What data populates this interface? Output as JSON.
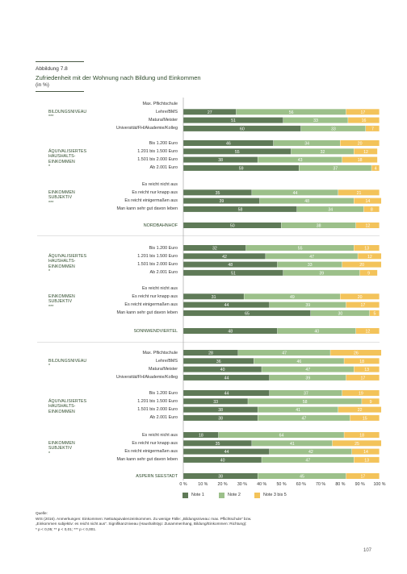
{
  "figure": {
    "label": "Abbildung 7.8",
    "title": "Zufriedenheit mit der Wohnung nach Bildung und Einkommen",
    "unit": "(in %)"
  },
  "colors": {
    "note1": "#5f7a57",
    "note2": "#9cc08a",
    "note3": "#f3c35a"
  },
  "legend": [
    "Note 1",
    "Note 2",
    "Note 3 bis 5"
  ],
  "chart_data": {
    "type": "bar",
    "orientation": "horizontal",
    "stacked": true,
    "xlim": [
      0,
      100
    ],
    "x_ticks": [
      "0 %",
      "10 %",
      "20 %",
      "30 %",
      "40 %",
      "50 %",
      "60 %",
      "70 %",
      "80 %",
      "90 %",
      "100 %"
    ],
    "series_names": [
      "Note 1",
      "Note 2",
      "Note 3 bis 5"
    ],
    "blocks": [
      {
        "groups": [
          {
            "label": [
              "BILDUNGSNIVEAU",
              "***"
            ],
            "rows": [
              {
                "label": "Max. Pflichtschule",
                "values": null
              },
              {
                "label": "Lehre/BMS",
                "values": [
                  27,
                  56,
                  17
                ]
              },
              {
                "label": "Matura/Meister",
                "values": [
                  51,
                  33,
                  16
                ]
              },
              {
                "label": "Universität/FH/Akademie/Kolleg",
                "values": [
                  60,
                  33,
                  7
                ]
              }
            ]
          },
          {
            "label": [
              "ÄQUIVALISIERTES",
              "HAUSHALTS-",
              "EINKOMMEN",
              "*"
            ],
            "rows": [
              {
                "label": "Bis 1.200 Euro",
                "values": [
                  46,
                  34,
                  20
                ]
              },
              {
                "label": "1.201 bis 1.500 Euro",
                "values": [
                  55,
                  32,
                  12
                ]
              },
              {
                "label": "1.501 bis 2.000 Euro",
                "values": [
                  38,
                  43,
                  18
                ]
              },
              {
                "label": "Ab 2.001 Euro",
                "values": [
                  59,
                  37,
                  4
                ]
              }
            ]
          },
          {
            "label": [
              "EINKOMMEN",
              "SUBJEKTIV",
              "***"
            ],
            "rows": [
              {
                "label": "Es reicht nicht aus",
                "values": null
              },
              {
                "label": "Es reicht nur knapp aus",
                "values": [
                  35,
                  44,
                  21
                ]
              },
              {
                "label": "Es reicht einigermaßen aus",
                "values": [
                  39,
                  48,
                  14
                ]
              },
              {
                "label": "Man kann sehr gut davon leben",
                "values": [
                  58,
                  34,
                  8
                ]
              }
            ]
          }
        ],
        "total": {
          "label": "NORDBAHNHOF",
          "values": [
            50,
            38,
            12
          ]
        }
      },
      {
        "groups": [
          {
            "label": [
              "ÄQUIVALISIERTES",
              "HAUSHALTS-",
              "EINKOMMEN",
              "*"
            ],
            "rows": [
              {
                "label": "Bis 1.200 Euro",
                "values": [
                  32,
                  55,
                  13
                ]
              },
              {
                "label": "1.201 bis 1.500 Euro",
                "values": [
                  42,
                  47,
                  12
                ]
              },
              {
                "label": "1.501 bis 2.000 Euro",
                "values": [
                  48,
                  33,
                  20
                ]
              },
              {
                "label": "Ab 2.001 Euro",
                "values": [
                  51,
                  39,
                  9
                ]
              }
            ]
          },
          {
            "label": [
              "EINKOMMEN",
              "SUBJEKTIV",
              "***"
            ],
            "rows": [
              {
                "label": "Es reicht nicht aus",
                "values": null
              },
              {
                "label": "Es reicht nur knapp aus",
                "values": [
                  31,
                  49,
                  20
                ]
              },
              {
                "label": "Es reicht einigermaßen aus",
                "values": [
                  44,
                  39,
                  17
                ]
              },
              {
                "label": "Man kann sehr gut davon leben",
                "values": [
                  65,
                  30,
                  5
                ]
              }
            ]
          }
        ],
        "total": {
          "label": "SONNWENDVIERTEL",
          "values": [
            48,
            40,
            12
          ]
        }
      },
      {
        "groups": [
          {
            "label": [
              "BILDUNGSNIVEAU",
              "*"
            ],
            "rows": [
              {
                "label": "Max. Pflichtschule",
                "values": [
                  28,
                  47,
                  26
                ]
              },
              {
                "label": "Lehre/BMS",
                "values": [
                  36,
                  46,
                  18
                ]
              },
              {
                "label": "Matura/Meister",
                "values": [
                  40,
                  47,
                  13
                ]
              },
              {
                "label": "Universität/FH/Akademie/Kolleg",
                "values": [
                  44,
                  39,
                  17
                ]
              }
            ]
          },
          {
            "label": [
              "ÄQUIVALISIERTES",
              "HAUSHALTS-",
              "EINKOMMEN"
            ],
            "rows": [
              {
                "label": "Bis 1.200 Euro",
                "values": [
                  44,
                  37,
                  19
                ]
              },
              {
                "label": "1.201 bis 1.500 Euro",
                "values": [
                  33,
                  58,
                  9
                ]
              },
              {
                "label": "1.501 bis 2.000 Euro",
                "values": [
                  38,
                  41,
                  22
                ]
              },
              {
                "label": "Ab 2.001 Euro",
                "values": [
                  38,
                  47,
                  15
                ]
              }
            ]
          },
          {
            "label": [
              "EINKOMMEN",
              "SUBJEKTIV",
              "*"
            ],
            "rows": [
              {
                "label": "Es reicht nicht aus",
                "values": [
                  18,
                  64,
                  18
                ]
              },
              {
                "label": "Es reicht nur knapp aus",
                "values": [
                  35,
                  41,
                  25
                ]
              },
              {
                "label": "Es reicht einigermaßen aus",
                "values": [
                  44,
                  42,
                  14
                ]
              },
              {
                "label": "Man kann sehr gut davon leben",
                "values": [
                  40,
                  47,
                  13
                ]
              }
            ]
          }
        ],
        "total": {
          "label": "ASPERN SEESTADT",
          "values": [
            38,
            45,
            17
          ]
        }
      }
    ]
  },
  "source": [
    "Quelle:",
    "WIS (2016). Anmerkungen: Einkommen: Nettoäquivalenzeinkommen. Zu wenige Fälle: „Bildungsniveau: max. Pflichtschule“ bzw.",
    "„Einkommen subjektiv: es reicht nicht aus“. Signifikanzniveau (Haushaltstyp: Zusammenhang, Bildung/Einkommen: Richtung):",
    "* p < 0,05; ** p < 0,01; *** p < 0,001."
  ],
  "page_number": "107"
}
